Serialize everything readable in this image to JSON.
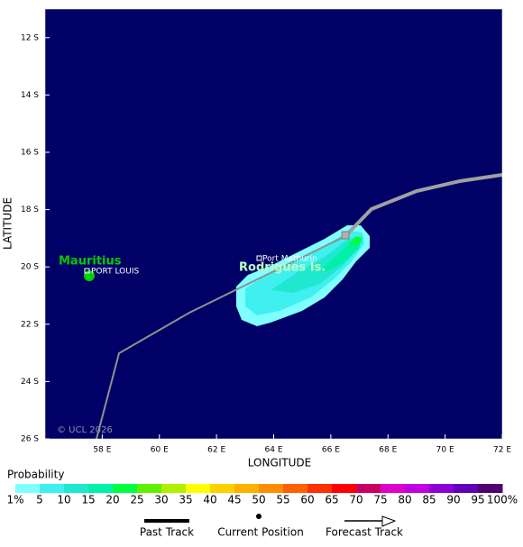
{
  "map": {
    "xlim": [
      56,
      72
    ],
    "ylim": [
      26,
      11
    ],
    "xticks": [
      {
        "value": 58,
        "label": "58 E"
      },
      {
        "value": 60,
        "label": "60 E"
      },
      {
        "value": 62,
        "label": "62 E"
      },
      {
        "value": 64,
        "label": "64 E"
      },
      {
        "value": 66,
        "label": "66 E"
      },
      {
        "value": 68,
        "label": "68 E"
      },
      {
        "value": 70,
        "label": "70 E"
      },
      {
        "value": 72,
        "label": "72 E"
      }
    ],
    "yticks": [
      {
        "value": 12,
        "label": "12 S"
      },
      {
        "value": 14,
        "label": "14 S"
      },
      {
        "value": 16,
        "label": "16 S"
      },
      {
        "value": 18,
        "label": "18 S"
      },
      {
        "value": 20,
        "label": "20 S"
      },
      {
        "value": 22,
        "label": "22 S"
      },
      {
        "value": 24,
        "label": "24 S"
      },
      {
        "value": 26,
        "label": "26 S"
      }
    ],
    "xlabel": "LONGITUDE",
    "ylabel": "LATITUDE",
    "places": {
      "mauritius": "Mauritius",
      "port_louis": "PORT LOUIS",
      "port_mathurin": "Port Mathurin",
      "rodrigues": "Rodrigues Is."
    },
    "copyright": "© UCL 2026"
  },
  "legend": {
    "title": "Probability",
    "labels": [
      "1%",
      "5",
      "10",
      "15",
      "20",
      "25",
      "30",
      "35",
      "40",
      "45",
      "50",
      "55",
      "60",
      "65",
      "70",
      "75",
      "80",
      "85",
      "90",
      "95",
      "100%"
    ],
    "colors": [
      "#80ffff",
      "#40f0f0",
      "#20e8d0",
      "#00f0a8",
      "#00ff40",
      "#60f000",
      "#b0f000",
      "#ffff00",
      "#ffd000",
      "#ffb000",
      "#ff8c00",
      "#ff6000",
      "#ff3000",
      "#ff0000",
      "#c80064",
      "#e000c8",
      "#c000e0",
      "#8c00d8",
      "#6000b8",
      "#500070"
    ],
    "past_track": "Past Track",
    "current_position": "Current Position",
    "forecast_track": "Forecast Track"
  }
}
